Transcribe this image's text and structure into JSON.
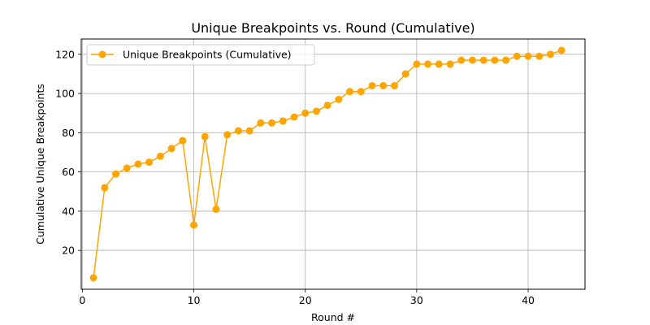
{
  "chart_data": {
    "type": "line",
    "title": "Unique Breakpoints vs. Round (Cumulative)",
    "xlabel": "Round #",
    "ylabel": "Cumulative Unique Breakpoints",
    "xlim": [
      -0.1,
      45.1
    ],
    "ylim": [
      0.2,
      127.8
    ],
    "xticks": [
      0,
      10,
      20,
      30,
      40
    ],
    "yticks": [
      20,
      40,
      60,
      80,
      100,
      120
    ],
    "grid": true,
    "legend_position": "top-left",
    "series": [
      {
        "name": "Unique Breakpoints (Cumulative)",
        "color": "#FFA500",
        "marker": "circle",
        "x": [
          1,
          2,
          3,
          4,
          5,
          6,
          7,
          8,
          9,
          10,
          11,
          12,
          13,
          14,
          15,
          16,
          17,
          18,
          19,
          20,
          21,
          22,
          23,
          24,
          25,
          26,
          27,
          28,
          29,
          30,
          31,
          32,
          33,
          34,
          35,
          36,
          37,
          38,
          39,
          40,
          41,
          42,
          43
        ],
        "y": [
          6,
          52,
          59,
          62,
          64,
          65,
          68,
          72,
          76,
          33,
          78,
          41,
          79,
          81,
          81,
          85,
          85,
          86,
          88,
          90,
          91,
          94,
          97,
          101,
          101,
          104,
          104,
          104,
          110,
          115,
          115,
          115,
          115,
          117,
          117,
          117,
          117,
          117,
          119,
          119,
          119,
          120,
          122
        ]
      }
    ]
  }
}
